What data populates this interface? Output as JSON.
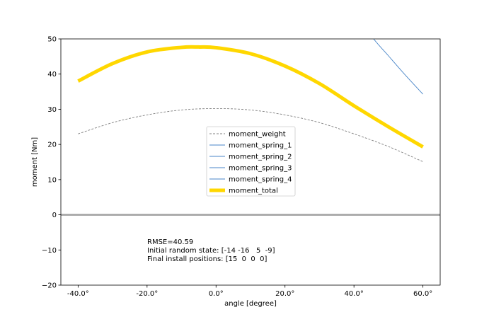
{
  "chart_data": {
    "type": "line",
    "title": "",
    "xlabel": "angle [degree]",
    "ylabel": "moment [Nm]",
    "xlim": [
      -45,
      65
    ],
    "ylim": [
      -20,
      50
    ],
    "grid": false,
    "legend_position": "center",
    "x_ticks": [
      -40,
      -20,
      0,
      20,
      40,
      60
    ],
    "x_tick_labels": [
      "-40.0°",
      "-20.0°",
      "0.0°",
      "20.0°",
      "40.0°",
      "60.0°"
    ],
    "y_ticks": [
      -20,
      -10,
      0,
      10,
      20,
      30,
      40,
      50
    ],
    "y_tick_labels": [
      "−20",
      "−10",
      "0",
      "10",
      "20",
      "30",
      "40",
      "50"
    ],
    "series": [
      {
        "name": "moment_weight",
        "color": "#808080",
        "style": "dashed",
        "x": [
          -40,
          -30,
          -20,
          -10,
          0,
          10,
          20,
          30,
          40,
          50,
          60
        ],
        "y": [
          23.0,
          26.2,
          28.4,
          29.8,
          30.2,
          29.8,
          28.4,
          26.2,
          23.0,
          19.4,
          15.1
        ]
      },
      {
        "name": "moment_spring_1",
        "color": "#4a86c8",
        "style": "solid",
        "x": [
          40,
          45,
          50,
          55,
          60
        ],
        "y": [
          58.7,
          50.9,
          45.2,
          39.6,
          34.3
        ]
      },
      {
        "name": "moment_spring_2",
        "color": "#4a86c8",
        "style": "solid",
        "x": [],
        "y": []
      },
      {
        "name": "moment_spring_3",
        "color": "#4a86c8",
        "style": "solid",
        "x": [],
        "y": []
      },
      {
        "name": "moment_spring_4",
        "color": "#4a86c8",
        "style": "solid",
        "x": [],
        "y": []
      },
      {
        "name": "moment_total",
        "color": "#ffd700",
        "style": "thick",
        "x": [
          -40,
          -30,
          -20,
          -10,
          -5,
          0,
          10,
          20,
          30,
          40,
          50,
          60
        ],
        "y": [
          38.0,
          43.0,
          46.3,
          47.6,
          47.7,
          47.5,
          45.8,
          42.3,
          37.3,
          31.0,
          25.0,
          19.3
        ]
      }
    ],
    "reference_line": {
      "y": 0,
      "color": "#a0a0a0"
    },
    "annotations": [
      "RMSE=40.59",
      "Initial random state: [-14 -16   5  -9]",
      "Final install positions: [15  0  0  0]"
    ]
  }
}
